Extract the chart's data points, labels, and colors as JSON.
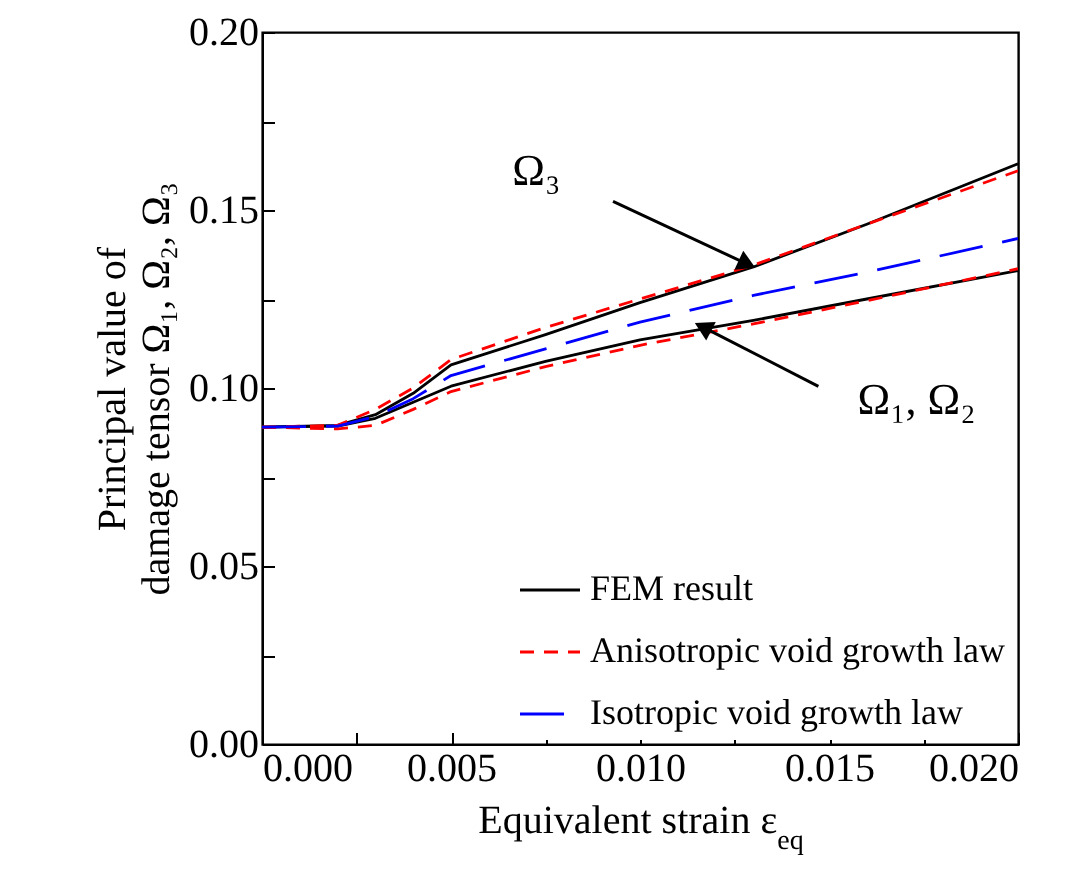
{
  "chart_data": {
    "type": "line",
    "xlabel": "Equivalent strain ε$_{eq}$",
    "ylabel": "Principal value of\ndamage tensor Ω₁, Ω₂, Ω₃",
    "x": [
      0,
      0.002,
      0.003,
      0.004,
      0.005,
      0.0075,
      0.01,
      0.013,
      0.016,
      0.02
    ],
    "series": [
      {
        "name": "FEM result",
        "color": "#000000",
        "line_style": "solid",
        "values": [
          0.089,
          0.0895,
          0.0925,
          0.0985,
          0.1065,
          0.115,
          0.124,
          0.134,
          0.146,
          0.163
        ]
      },
      {
        "color": "#000000",
        "line_style": "solid",
        "values": [
          0.089,
          0.0893,
          0.0915,
          0.096,
          0.1005,
          0.1075,
          0.1135,
          0.119,
          0.125,
          0.133
        ]
      },
      {
        "name": "Anisotropic void growth law",
        "color": "#ff0000",
        "line_style": "dashed",
        "values": [
          0.089,
          0.0895,
          0.094,
          0.1,
          0.108,
          0.117,
          0.125,
          0.1345,
          0.146,
          0.161
        ]
      },
      {
        "color": "#ff0000",
        "line_style": "dashed",
        "values": [
          0.089,
          0.0885,
          0.0895,
          0.094,
          0.099,
          0.106,
          0.112,
          0.118,
          0.1245,
          0.1335
        ]
      },
      {
        "name": "Isotropic void growth law",
        "color": "#0000ff",
        "line_style": "longdash",
        "values": [
          0.089,
          0.0893,
          0.092,
          0.097,
          0.1035,
          0.111,
          0.1185,
          0.126,
          0.1325,
          0.142
        ]
      }
    ],
    "annotations": [
      {
        "text": "Ω₃",
        "x": 0.013,
        "y": 0.134
      },
      {
        "text": "Ω₁, Ω₂",
        "x": 0.0115,
        "y": 0.118
      }
    ],
    "xlim": [
      0,
      0.02
    ],
    "xticks": [
      {
        "value": 0,
        "label": "0.000"
      },
      {
        "value": 0.0025,
        "label": null
      },
      {
        "value": 0.005,
        "label": "0.005"
      },
      {
        "value": 0.0075,
        "label": null
      },
      {
        "value": 0.01,
        "label": "0.010"
      },
      {
        "value": 0.0125,
        "label": null
      },
      {
        "value": 0.015,
        "label": "0.015"
      },
      {
        "value": 0.0175,
        "label": null
      },
      {
        "value": 0.02,
        "label": "0.020"
      }
    ],
    "ylim": [
      0,
      0.2
    ],
    "yticks": [
      {
        "value": 0,
        "label": "0.00"
      },
      {
        "value": 0.025,
        "label": null
      },
      {
        "value": 0.05,
        "label": "0.05"
      },
      {
        "value": 0.075,
        "label": null
      },
      {
        "value": 0.1,
        "label": "0.10"
      },
      {
        "value": 0.125,
        "label": null
      },
      {
        "value": 0.15,
        "label": "0.15"
      },
      {
        "value": 0.175,
        "label": null
      },
      {
        "value": 0.2,
        "label": "0.20"
      }
    ],
    "legend": "bottom right",
    "grid": false
  }
}
